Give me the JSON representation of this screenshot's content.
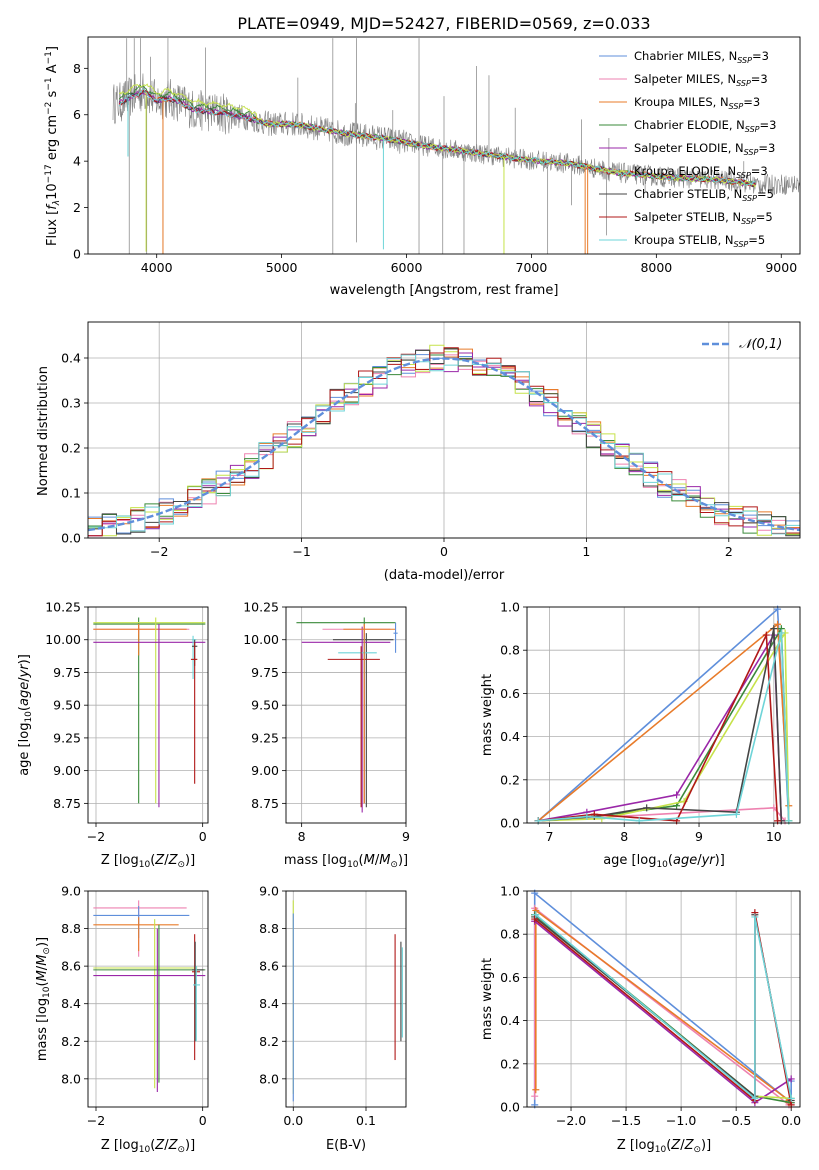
{
  "colors": {
    "series": [
      "#5f8fdb",
      "#ee82b0",
      "#e87b2a",
      "#3a8a3a",
      "#9a27a8",
      "#c6e24a",
      "#454545",
      "#b01818",
      "#6ed4d8"
    ],
    "data_gray": "#808080",
    "grid": "#b0b0b0"
  },
  "chart_data": [
    {
      "id": "spectrum",
      "type": "line",
      "title": "PLATE=0949, MJD=52427, FIBERID=0569, z=0.033",
      "xlabel": "wavelength [Angstrom, rest frame]",
      "ylabel": "Flux [f_λ10^-17 erg cm^-2 s^-1 A^-1]",
      "ylabel_parts": {
        "base": "Flux [",
        "f": "f",
        "lam": "λ",
        "ten": "10",
        "e1": "−17",
        "erg": " erg cm",
        "e2": "−2",
        "s": " s",
        "e3": "−1",
        "A": " A",
        "e4": "−1",
        "close": "]"
      },
      "xlim": [
        3450,
        9150
      ],
      "ylim": [
        0,
        9.35
      ],
      "xticks": [
        4000,
        5000,
        6000,
        7000,
        8000,
        9000
      ],
      "yticks": [
        0,
        2,
        4,
        6,
        8
      ],
      "grid": false,
      "legend_position": "upper right",
      "legend": [
        {
          "name": "Chabrier MILES",
          "n": "3"
        },
        {
          "name": "Salpeter MILES",
          "n": "3"
        },
        {
          "name": "Kroupa MILES",
          "n": "3"
        },
        {
          "name": "Chabrier ELODIE",
          "n": "3"
        },
        {
          "name": "Salpeter ELODIE",
          "n": "3"
        },
        {
          "name": "Kroupa ELODIE",
          "n": "3"
        },
        {
          "name": "Chabrier STELIB",
          "n": "5"
        },
        {
          "name": "Salpeter STELIB",
          "n": "5"
        },
        {
          "name": "Kroupa STELIB",
          "n": "5"
        }
      ],
      "legend_subscript": "SSP",
      "continuum_points": [
        [
          3700,
          6.5
        ],
        [
          3800,
          6.8
        ],
        [
          3900,
          7.0
        ],
        [
          4000,
          6.6
        ],
        [
          4100,
          6.7
        ],
        [
          4200,
          6.5
        ],
        [
          4300,
          6.2
        ],
        [
          4500,
          6.1
        ],
        [
          4700,
          5.9
        ],
        [
          4900,
          5.6
        ],
        [
          5100,
          5.6
        ],
        [
          5300,
          5.4
        ],
        [
          5500,
          5.2
        ],
        [
          5800,
          5.0
        ],
        [
          6100,
          4.7
        ],
        [
          6500,
          4.4
        ],
        [
          6900,
          4.1
        ],
        [
          7300,
          3.9
        ],
        [
          7700,
          3.5
        ],
        [
          8100,
          3.3
        ],
        [
          8500,
          3.2
        ],
        [
          8800,
          3.0
        ]
      ],
      "model_range": [
        3700,
        8800
      ],
      "data_range": [
        3650,
        9150
      ],
      "spikes_down": [
        {
          "x": 4050,
          "y": 0
        },
        {
          "x": 3915,
          "y": 0.1
        },
        {
          "x": 5815,
          "y": 0.2
        },
        {
          "x": 6780,
          "y": 0
        },
        {
          "x": 7430,
          "y": 0
        },
        {
          "x": 7450,
          "y": 0
        },
        {
          "x": 3770,
          "y": 4.2
        }
      ],
      "data_spikes": [
        [
          3760,
          9.3
        ],
        [
          3820,
          9.3
        ],
        [
          3870,
          9.3
        ],
        [
          3950,
          8.5
        ],
        [
          4090,
          9.3
        ],
        [
          4390,
          8.9
        ],
        [
          5130,
          7.6
        ],
        [
          5410,
          9.3
        ],
        [
          5600,
          9.3
        ],
        [
          5590,
          6.5
        ],
        [
          5890,
          6.2
        ],
        [
          6100,
          9.3
        ],
        [
          6300,
          6.8
        ],
        [
          6560,
          8.1
        ],
        [
          6660,
          7.7
        ],
        [
          6870,
          6.3
        ],
        [
          7400,
          5.8
        ],
        [
          7620,
          5.0
        ],
        [
          8700,
          4.0
        ]
      ],
      "data_dips": [
        [
          3780,
          0
        ],
        [
          3920,
          0
        ],
        [
          4050,
          0
        ],
        [
          5410,
          0
        ],
        [
          5600,
          0.5
        ],
        [
          6100,
          0
        ],
        [
          6290,
          0
        ],
        [
          6460,
          0
        ],
        [
          7130,
          0
        ],
        [
          7320,
          2.1
        ],
        [
          7600,
          0.8
        ],
        [
          7910,
          2.7
        ]
      ]
    },
    {
      "id": "residuals",
      "type": "histogram",
      "xlabel": "(data-model)/error",
      "ylabel": "Normed distribution",
      "xlim": [
        -2.5,
        2.5
      ],
      "ylim": [
        0,
        0.48
      ],
      "xticks": [
        -2,
        -1,
        0,
        1,
        2
      ],
      "yticks": [
        0.0,
        0.1,
        0.2,
        0.3,
        0.4
      ],
      "grid": true,
      "bin_width": 0.1,
      "legend_position": "upper right",
      "legend_label": "𝒩(0,1)",
      "reference_curve": "normal(0,1)"
    },
    {
      "id": "age-vs-Z",
      "type": "scatter-errorbar",
      "xlabel": "Z [log10(Z/Z⊙)]",
      "ylabel": "age  [log10(age/yr)]",
      "xlim": [
        -2.15,
        0.1
      ],
      "ylim": [
        8.6,
        10.25
      ],
      "xticks": [
        -2,
        0
      ],
      "yticks": [
        8.75,
        9.0,
        9.25,
        9.5,
        9.75,
        10.0,
        10.25
      ],
      "grid": true,
      "points": [
        {
          "x": -1.2,
          "y": 10.12,
          "xlo": -2.05,
          "xhi": 0.05,
          "ylo": 8.75,
          "yhi": 10.17,
          "s": 3
        },
        {
          "x": -1.2,
          "y": 10.08,
          "xlo": -2.05,
          "xhi": -0.25,
          "ylo": 10.04,
          "yhi": 10.12,
          "s": 1
        },
        {
          "x": -1.2,
          "y": 10.08,
          "xlo": -2.05,
          "xhi": -0.3,
          "ylo": 9.88,
          "yhi": 10.12,
          "s": 2
        },
        {
          "x": -0.88,
          "y": 10.13,
          "xlo": -2.05,
          "xhi": 0.05,
          "ylo": 8.75,
          "yhi": 10.17,
          "s": 5
        },
        {
          "x": -0.82,
          "y": 9.98,
          "xlo": -2.05,
          "xhi": 0.05,
          "ylo": 8.72,
          "yhi": 10.12,
          "s": 4
        },
        {
          "x": -0.18,
          "y": 10.0,
          "xlo": -0.2,
          "xhi": -0.12,
          "ylo": 9.7,
          "yhi": 10.03,
          "s": 8
        },
        {
          "x": -0.15,
          "y": 9.95,
          "xlo": -0.2,
          "xhi": -0.1,
          "ylo": 9.8,
          "yhi": 10.0,
          "s": 6
        },
        {
          "x": -0.15,
          "y": 9.85,
          "xlo": -0.22,
          "xhi": -0.1,
          "ylo": 8.9,
          "yhi": 9.98,
          "s": 7
        }
      ]
    },
    {
      "id": "age-vs-mass",
      "type": "scatter-errorbar",
      "xlabel": "mass [log10(M/M⊙)]",
      "ylabel": "",
      "xlim": [
        7.85,
        9.0
      ],
      "ylim": [
        8.6,
        10.25
      ],
      "xticks": [
        8,
        9
      ],
      "yticks": [
        8.75,
        9.0,
        9.25,
        9.5,
        9.75,
        10.0,
        10.25
      ],
      "grid": true,
      "points": [
        {
          "x": 8.6,
          "y": 10.13,
          "xlo": 7.95,
          "xhi": 8.9,
          "ylo": 8.75,
          "yhi": 10.17,
          "s": 3
        },
        {
          "x": 8.6,
          "y": 10.08,
          "xlo": 8.2,
          "xhi": 8.85,
          "ylo": 8.75,
          "yhi": 10.12,
          "s": 1
        },
        {
          "x": 8.62,
          "y": 10.0,
          "xlo": 8.3,
          "xhi": 8.88,
          "ylo": 8.72,
          "yhi": 10.05,
          "s": 6
        },
        {
          "x": 8.58,
          "y": 9.98,
          "xlo": 8.0,
          "xhi": 8.85,
          "ylo": 8.68,
          "yhi": 10.1,
          "s": 4
        },
        {
          "x": 8.6,
          "y": 9.9,
          "xlo": 8.35,
          "xhi": 8.72,
          "ylo": 9.7,
          "yhi": 10.02,
          "s": 8
        },
        {
          "x": 8.57,
          "y": 9.85,
          "xlo": 8.25,
          "xhi": 8.75,
          "ylo": 8.72,
          "yhi": 9.95,
          "s": 7
        },
        {
          "x": 8.6,
          "y": 10.08,
          "xlo": 8.4,
          "xhi": 8.9,
          "ylo": 8.75,
          "yhi": 10.12,
          "s": 2
        },
        {
          "x": 8.9,
          "y": 10.05,
          "xlo": 8.88,
          "xhi": 8.92,
          "ylo": 9.9,
          "yhi": 10.13,
          "s": 0
        }
      ]
    },
    {
      "id": "mass-weight-vs-age",
      "type": "line",
      "xlabel": "age  [log10(age/yr)]",
      "ylabel": "mass weight",
      "xlim": [
        6.7,
        10.35
      ],
      "ylim": [
        0,
        1.0
      ],
      "xticks": [
        7,
        8,
        9,
        10
      ],
      "yticks": [
        0.0,
        0.2,
        0.4,
        0.6,
        0.8,
        1.0
      ],
      "grid": true,
      "series": [
        {
          "s": 0,
          "x": [
            6.85,
            10.05,
            10.2
          ],
          "y": [
            0.01,
            0.99,
            0.01
          ]
        },
        {
          "s": 1,
          "x": [
            6.85,
            10.0,
            10.15
          ],
          "y": [
            0.01,
            0.07,
            0.01
          ]
        },
        {
          "s": 2,
          "x": [
            6.85,
            10.05,
            10.2
          ],
          "y": [
            0.01,
            0.92,
            0.08
          ]
        },
        {
          "s": 3,
          "x": [
            6.85,
            7.6,
            8.7,
            10.1,
            10.2
          ],
          "y": [
            0.01,
            0.03,
            0.08,
            0.9,
            0.01
          ]
        },
        {
          "s": 4,
          "x": [
            6.85,
            7.5,
            8.7,
            10.0,
            10.1
          ],
          "y": [
            0.01,
            0.05,
            0.13,
            0.87,
            0.01
          ]
        },
        {
          "s": 5,
          "x": [
            6.85,
            7.7,
            8.8,
            10.15,
            10.2
          ],
          "y": [
            0.01,
            0.02,
            0.1,
            0.88,
            0.01
          ]
        },
        {
          "s": 6,
          "x": [
            6.85,
            7.6,
            8.3,
            9.5,
            10.0,
            10.1
          ],
          "y": [
            0.01,
            0.03,
            0.07,
            0.05,
            0.9,
            0.01
          ]
        },
        {
          "s": 7,
          "x": [
            6.85,
            7.6,
            8.7,
            9.9,
            10.05
          ],
          "y": [
            0.01,
            0.04,
            0.01,
            0.87,
            0.01
          ]
        },
        {
          "s": 8,
          "x": [
            6.85,
            7.5,
            8.2,
            9.5,
            10.1,
            10.2
          ],
          "y": [
            0.01,
            0.03,
            0.01,
            0.04,
            0.88,
            0.01
          ]
        }
      ]
    },
    {
      "id": "mass-vs-Z",
      "type": "scatter-errorbar",
      "xlabel": "Z [log10(Z/Z⊙)]",
      "ylabel": "mass [log10(M/M⊙)]",
      "xlim": [
        -2.15,
        0.1
      ],
      "ylim": [
        7.85,
        9.0
      ],
      "xticks": [
        -2,
        0
      ],
      "yticks": [
        8.0,
        8.2,
        8.4,
        8.6,
        8.8,
        9.0
      ],
      "grid": true,
      "points": [
        {
          "x": -1.2,
          "y": 8.91,
          "xlo": -2.05,
          "xhi": -0.3,
          "ylo": 8.65,
          "yhi": 8.95,
          "s": 1
        },
        {
          "x": -1.2,
          "y": 8.87,
          "xlo": -2.05,
          "xhi": -0.25,
          "ylo": 8.75,
          "yhi": 8.92,
          "s": 0
        },
        {
          "x": -1.2,
          "y": 8.82,
          "xlo": -2.05,
          "xhi": -0.45,
          "ylo": 8.68,
          "yhi": 8.86,
          "s": 2
        },
        {
          "x": -0.9,
          "y": 8.59,
          "xlo": -2.05,
          "xhi": -0.1,
          "ylo": 7.95,
          "yhi": 8.85,
          "s": 5
        },
        {
          "x": -0.82,
          "y": 8.58,
          "xlo": -2.05,
          "xhi": 0.05,
          "ylo": 7.98,
          "yhi": 8.82,
          "s": 3
        },
        {
          "x": -0.85,
          "y": 8.55,
          "xlo": -2.05,
          "xhi": 0.05,
          "ylo": 7.93,
          "yhi": 8.8,
          "s": 4
        },
        {
          "x": -0.15,
          "y": 8.57,
          "xlo": -0.2,
          "xhi": -0.05,
          "ylo": 8.1,
          "yhi": 8.77,
          "s": 7
        },
        {
          "x": -0.14,
          "y": 8.58,
          "xlo": -0.2,
          "xhi": 0.02,
          "ylo": 8.2,
          "yhi": 8.73,
          "s": 6
        },
        {
          "x": -0.12,
          "y": 8.5,
          "xlo": -0.18,
          "xhi": -0.05,
          "ylo": 8.2,
          "yhi": 8.6,
          "s": 8
        }
      ]
    },
    {
      "id": "mass-vs-ebv",
      "type": "scatter-errorbar",
      "xlabel": "E(B-V)",
      "ylabel": "",
      "xlim": [
        -0.01,
        0.155
      ],
      "ylim": [
        7.85,
        9.0
      ],
      "xticks": [
        0.0,
        0.1
      ],
      "yticks": [
        8.0,
        8.2,
        8.4,
        8.6,
        8.8,
        9.0
      ],
      "grid": true,
      "points": [
        {
          "x": 0.0,
          "y": 8.6,
          "xlo": 0.0,
          "xhi": 0.0,
          "ylo": 7.92,
          "yhi": 8.95,
          "s": 5
        },
        {
          "x": 0.0,
          "y": 8.5,
          "xlo": 0.0,
          "xhi": 0.0,
          "ylo": 7.88,
          "yhi": 8.88,
          "s": 0
        },
        {
          "x": 0.14,
          "y": 8.5,
          "xlo": 0.14,
          "xhi": 0.14,
          "ylo": 8.1,
          "yhi": 8.77,
          "s": 7
        },
        {
          "x": 0.148,
          "y": 8.5,
          "xlo": 0.148,
          "xhi": 0.148,
          "ylo": 8.2,
          "yhi": 8.73,
          "s": 6
        },
        {
          "x": 0.15,
          "y": 8.45,
          "xlo": 0.15,
          "xhi": 0.15,
          "ylo": 8.22,
          "yhi": 8.7,
          "s": 8
        }
      ]
    },
    {
      "id": "mass-weight-vs-Z",
      "type": "line",
      "xlabel": "Z [log10(Z/Z⊙)]",
      "ylabel": "mass weight",
      "xlim": [
        -2.4,
        0.08
      ],
      "ylim": [
        0,
        1.0
      ],
      "xticks": [
        -2.0,
        -1.5,
        -1.0,
        -0.5,
        0.0
      ],
      "yticks": [
        0.0,
        0.2,
        0.4,
        0.6,
        0.8,
        1.0
      ],
      "grid": true,
      "series": [
        {
          "s": 0,
          "x": [
            -2.33,
            -2.33,
            0.0,
            0.0
          ],
          "y": [
            0.01,
            0.99,
            0.02,
            0.12
          ]
        },
        {
          "s": 1,
          "x": [
            -2.33,
            -2.33,
            -0.02,
            0.0
          ],
          "y": [
            0.05,
            0.92,
            0.01,
            0.02
          ]
        },
        {
          "s": 2,
          "x": [
            -2.32,
            -2.32,
            -0.02,
            -0.02
          ],
          "y": [
            0.08,
            0.91,
            0.03,
            0.02
          ]
        },
        {
          "s": 3,
          "x": [
            -2.33,
            -0.33,
            0.0
          ],
          "y": [
            0.89,
            0.05,
            0.02
          ]
        },
        {
          "s": 4,
          "x": [
            -2.33,
            -0.33,
            0.0
          ],
          "y": [
            0.86,
            0.02,
            0.13
          ]
        },
        {
          "s": 5,
          "x": [
            -2.33,
            -0.33,
            0.0
          ],
          "y": [
            0.88,
            0.05,
            0.04
          ]
        },
        {
          "s": 6,
          "x": [
            -2.33,
            -0.33,
            -0.33,
            0.0
          ],
          "y": [
            0.88,
            0.05,
            0.89,
            0.03
          ]
        },
        {
          "s": 7,
          "x": [
            -2.33,
            -0.33,
            -0.33,
            0.0
          ],
          "y": [
            0.87,
            0.03,
            0.9,
            0.01
          ]
        },
        {
          "s": 8,
          "x": [
            -2.32,
            -0.33,
            -0.33,
            0.0
          ],
          "y": [
            0.89,
            0.04,
            0.88,
            0.04
          ]
        }
      ]
    }
  ]
}
